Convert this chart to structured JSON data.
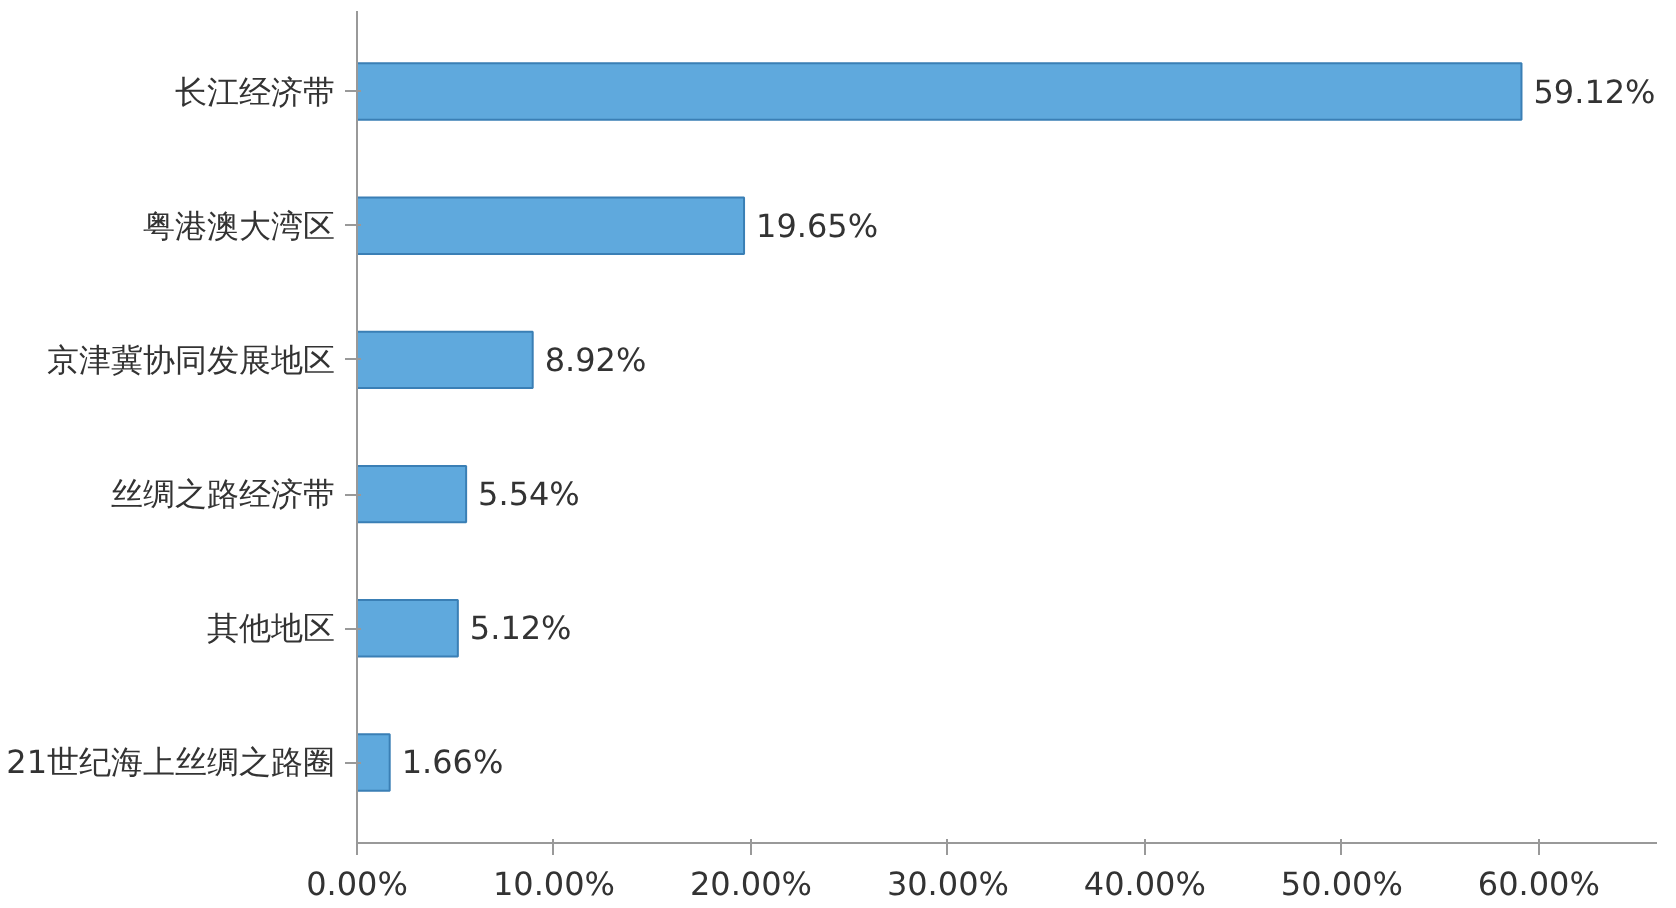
{
  "chart_data": {
    "type": "bar",
    "orientation": "horizontal",
    "categories": [
      "长江经济带",
      "粤港澳大湾区",
      "京津冀协同发展地区",
      "丝绸之路经济带",
      "其他地区",
      "21世纪海上丝绸之路圈"
    ],
    "values": [
      59.12,
      19.65,
      8.92,
      5.54,
      5.12,
      1.66
    ],
    "value_labels": [
      "59.12%",
      "19.65%",
      "8.92%",
      "5.54%",
      "5.12%",
      "1.66%"
    ],
    "color": "#5fa9dd",
    "xlim": [
      0,
      66
    ],
    "xticks": [
      {
        "value": 0,
        "label": "0.00%"
      },
      {
        "value": 10,
        "label": "10.00%"
      },
      {
        "value": 20,
        "label": "20.00%"
      },
      {
        "value": 30,
        "label": "30.00%"
      },
      {
        "value": 40,
        "label": "40.00%"
      },
      {
        "value": 50,
        "label": "50.00%"
      },
      {
        "value": 60,
        "label": "60.00%"
      }
    ],
    "grid": false
  }
}
